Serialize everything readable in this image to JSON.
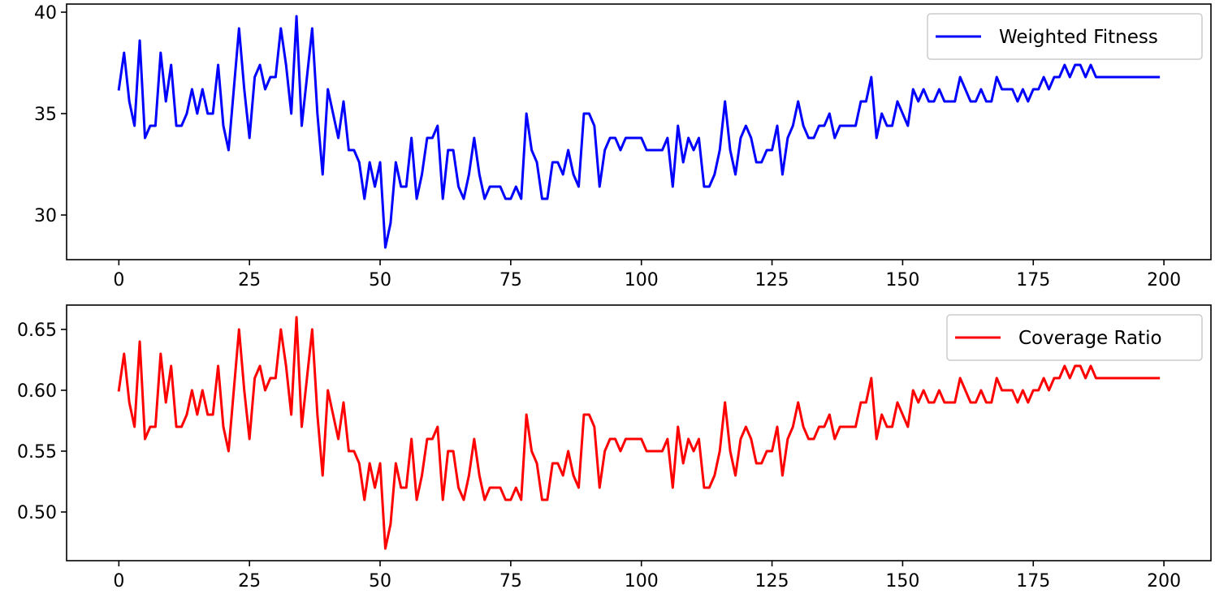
{
  "chart_data": [
    {
      "type": "line",
      "title": "",
      "xlabel": "",
      "ylabel": "",
      "xlim": [
        -10,
        209
      ],
      "ylim": [
        27.8,
        40.4
      ],
      "xticks": [
        0,
        25,
        50,
        75,
        100,
        125,
        150,
        175,
        200
      ],
      "yticks": [
        30,
        35,
        40
      ],
      "xtick_labels": [
        "0",
        "25",
        "50",
        "75",
        "100",
        "125",
        "150",
        "175",
        "200"
      ],
      "ytick_labels": [
        "30",
        "35",
        "40"
      ],
      "legend_position": "top-right",
      "grid": false,
      "series": [
        {
          "name": "Weighted Fitness",
          "color": "#0000ff",
          "x_start": 0,
          "x_step": 1,
          "values": [
            36.2,
            38.0,
            35.6,
            34.4,
            38.6,
            33.8,
            34.4,
            34.4,
            38.0,
            35.6,
            37.4,
            34.4,
            34.4,
            35.0,
            36.2,
            35.0,
            36.2,
            35.0,
            35.0,
            37.4,
            34.4,
            33.2,
            36.2,
            39.2,
            36.2,
            33.8,
            36.8,
            37.4,
            36.2,
            36.8,
            36.8,
            39.2,
            37.4,
            35.0,
            39.8,
            34.4,
            36.8,
            39.2,
            35.0,
            32.0,
            36.2,
            35.0,
            33.8,
            35.6,
            33.2,
            33.2,
            32.6,
            30.8,
            32.6,
            31.4,
            32.6,
            28.4,
            29.6,
            32.6,
            31.4,
            31.4,
            33.8,
            30.8,
            32.0,
            33.8,
            33.8,
            34.4,
            30.8,
            33.2,
            33.2,
            31.4,
            30.8,
            32.0,
            33.8,
            32.0,
            30.8,
            31.4,
            31.4,
            31.4,
            30.8,
            30.8,
            31.4,
            30.8,
            35.0,
            33.2,
            32.6,
            30.8,
            30.8,
            32.6,
            32.6,
            32.0,
            33.2,
            32.0,
            31.4,
            35.0,
            35.0,
            34.4,
            31.4,
            33.2,
            33.8,
            33.8,
            33.2,
            33.8,
            33.8,
            33.8,
            33.8,
            33.2,
            33.2,
            33.2,
            33.2,
            33.8,
            31.4,
            34.4,
            32.6,
            33.8,
            33.2,
            33.8,
            31.4,
            31.4,
            32.0,
            33.2,
            35.6,
            33.2,
            32.0,
            33.8,
            34.4,
            33.8,
            32.6,
            32.6,
            33.2,
            33.2,
            34.4,
            32.0,
            33.8,
            34.4,
            35.6,
            34.4,
            33.8,
            33.8,
            34.4,
            34.4,
            35.0,
            33.8,
            34.4,
            34.4,
            34.4,
            34.4,
            35.6,
            35.6,
            36.8,
            33.8,
            35.0,
            34.4,
            34.4,
            35.6,
            35.0,
            34.4,
            36.2,
            35.6,
            36.2,
            35.6,
            35.6,
            36.2,
            35.6,
            35.6,
            35.6,
            36.8,
            36.2,
            35.6,
            35.6,
            36.2,
            35.6,
            35.6,
            36.8,
            36.2,
            36.2,
            36.2,
            35.6,
            36.2,
            35.6,
            36.2,
            36.2,
            36.8,
            36.2,
            36.8,
            36.8,
            37.4,
            36.8,
            37.4,
            37.4,
            36.8,
            37.4,
            36.8,
            36.8,
            36.8,
            36.8,
            36.8,
            36.8,
            36.8,
            36.8,
            36.8,
            36.8,
            36.8,
            36.8,
            36.8
          ]
        }
      ]
    },
    {
      "type": "line",
      "title": "",
      "xlabel": "",
      "ylabel": "",
      "xlim": [
        -10,
        209
      ],
      "ylim": [
        0.46,
        0.67
      ],
      "xticks": [
        0,
        25,
        50,
        75,
        100,
        125,
        150,
        175,
        200
      ],
      "yticks": [
        0.5,
        0.55,
        0.6,
        0.65
      ],
      "xtick_labels": [
        "0",
        "25",
        "50",
        "75",
        "100",
        "125",
        "150",
        "175",
        "200"
      ],
      "ytick_labels": [
        "0.50",
        "0.55",
        "0.60",
        "0.65"
      ],
      "legend_position": "top-right",
      "grid": false,
      "series": [
        {
          "name": "Coverage Ratio",
          "color": "#ff0000",
          "x_start": 0,
          "x_step": 1,
          "values": [
            0.6,
            0.63,
            0.59,
            0.57,
            0.64,
            0.56,
            0.57,
            0.57,
            0.63,
            0.59,
            0.62,
            0.57,
            0.57,
            0.58,
            0.6,
            0.58,
            0.6,
            0.58,
            0.58,
            0.62,
            0.57,
            0.55,
            0.6,
            0.65,
            0.6,
            0.56,
            0.61,
            0.62,
            0.6,
            0.61,
            0.61,
            0.65,
            0.62,
            0.58,
            0.66,
            0.57,
            0.61,
            0.65,
            0.58,
            0.53,
            0.6,
            0.58,
            0.56,
            0.59,
            0.55,
            0.55,
            0.54,
            0.51,
            0.54,
            0.52,
            0.54,
            0.47,
            0.49,
            0.54,
            0.52,
            0.52,
            0.56,
            0.51,
            0.53,
            0.56,
            0.56,
            0.57,
            0.51,
            0.55,
            0.55,
            0.52,
            0.51,
            0.53,
            0.56,
            0.53,
            0.51,
            0.52,
            0.52,
            0.52,
            0.51,
            0.51,
            0.52,
            0.51,
            0.58,
            0.55,
            0.54,
            0.51,
            0.51,
            0.54,
            0.54,
            0.53,
            0.55,
            0.53,
            0.52,
            0.58,
            0.58,
            0.57,
            0.52,
            0.55,
            0.56,
            0.56,
            0.55,
            0.56,
            0.56,
            0.56,
            0.56,
            0.55,
            0.55,
            0.55,
            0.55,
            0.56,
            0.52,
            0.57,
            0.54,
            0.56,
            0.55,
            0.56,
            0.52,
            0.52,
            0.53,
            0.55,
            0.59,
            0.55,
            0.53,
            0.56,
            0.57,
            0.56,
            0.54,
            0.54,
            0.55,
            0.55,
            0.57,
            0.53,
            0.56,
            0.57,
            0.59,
            0.57,
            0.56,
            0.56,
            0.57,
            0.57,
            0.58,
            0.56,
            0.57,
            0.57,
            0.57,
            0.57,
            0.59,
            0.59,
            0.61,
            0.56,
            0.58,
            0.57,
            0.57,
            0.59,
            0.58,
            0.57,
            0.6,
            0.59,
            0.6,
            0.59,
            0.59,
            0.6,
            0.59,
            0.59,
            0.59,
            0.61,
            0.6,
            0.59,
            0.59,
            0.6,
            0.59,
            0.59,
            0.61,
            0.6,
            0.6,
            0.6,
            0.59,
            0.6,
            0.59,
            0.6,
            0.6,
            0.61,
            0.6,
            0.61,
            0.61,
            0.62,
            0.61,
            0.62,
            0.62,
            0.61,
            0.62,
            0.61,
            0.61,
            0.61,
            0.61,
            0.61,
            0.61,
            0.61,
            0.61,
            0.61,
            0.61,
            0.61,
            0.61,
            0.61
          ]
        }
      ]
    }
  ]
}
